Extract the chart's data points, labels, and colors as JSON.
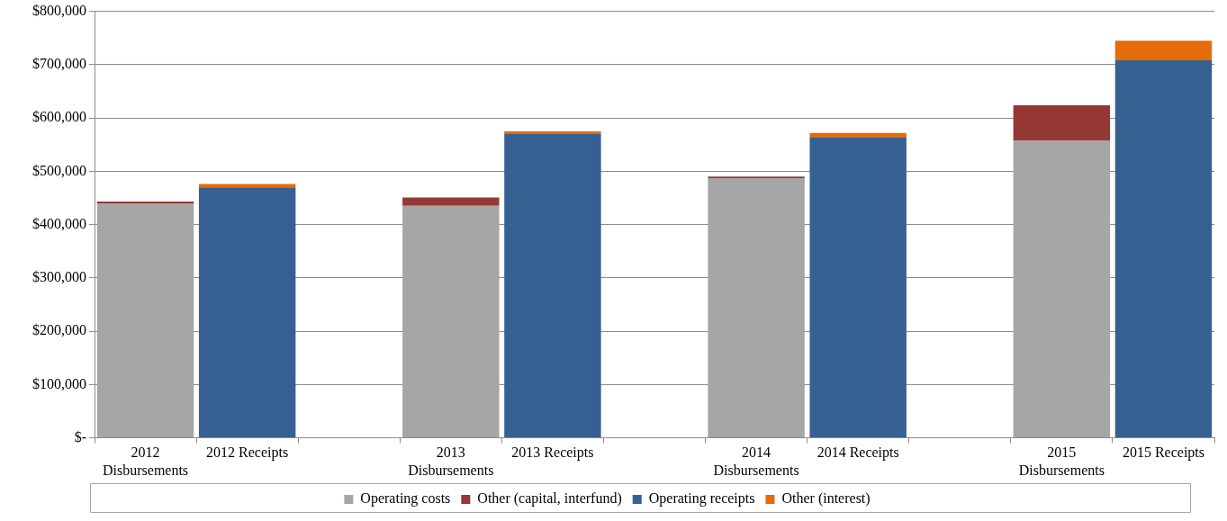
{
  "chart_data": {
    "type": "bar",
    "stacked": true,
    "categories": [
      "2012 Disbursements",
      "2012 Receipts",
      null,
      "2013 Disbursements",
      "2013 Receipts",
      null,
      "2014 Disbursements",
      "2014 Receipts",
      null,
      "2015 Disbursements",
      "2015 Receipts"
    ],
    "series": [
      {
        "name": "Operating costs",
        "color": "#a6a6a6",
        "values": [
          440000,
          null,
          null,
          435000,
          null,
          null,
          487000,
          null,
          null,
          557000,
          null
        ]
      },
      {
        "name": "Other (capital, interfund)",
        "color": "#953735",
        "values": [
          3000,
          null,
          null,
          16000,
          null,
          null,
          3000,
          null,
          null,
          67000,
          null
        ]
      },
      {
        "name": "Operating receipts",
        "color": "#366092",
        "values": [
          null,
          470000,
          null,
          null,
          570000,
          null,
          null,
          563000,
          null,
          null,
          708000
        ]
      },
      {
        "name": "Other (interest)",
        "color": "#e46c0a",
        "values": [
          null,
          6000,
          null,
          null,
          5000,
          null,
          null,
          9000,
          null,
          null,
          37000
        ]
      }
    ],
    "ylim": [
      0,
      800000
    ],
    "yticks": [
      {
        "value": 0,
        "label": "$-"
      },
      {
        "value": 100000,
        "label": "$100,000"
      },
      {
        "value": 200000,
        "label": "$200,000"
      },
      {
        "value": 300000,
        "label": "$300,000"
      },
      {
        "value": 400000,
        "label": "$400,000"
      },
      {
        "value": 500000,
        "label": "$500,000"
      },
      {
        "value": 600000,
        "label": "$600,000"
      },
      {
        "value": 700000,
        "label": "$700,000"
      },
      {
        "value": 800000,
        "label": "$800,000"
      }
    ],
    "grid": "y",
    "legend": "bottom"
  }
}
